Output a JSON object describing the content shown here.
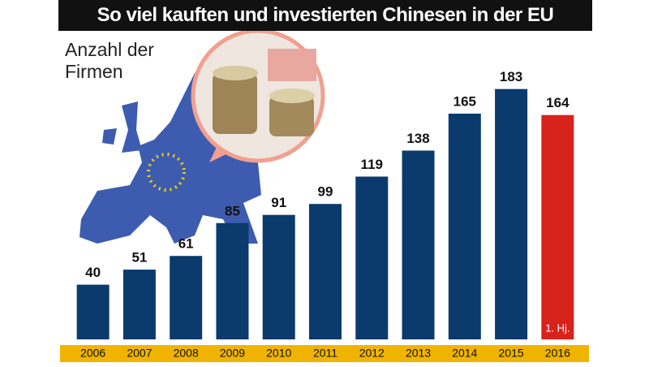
{
  "chart_data": {
    "type": "bar",
    "title": "So viel kauften und investierten Chinesen in der EU",
    "subtitle": "Anzahl der Firmen",
    "categories": [
      "2006",
      "2007",
      "2008",
      "2009",
      "2010",
      "2011",
      "2012",
      "2013",
      "2014",
      "2015",
      "2016"
    ],
    "values": [
      40,
      51,
      61,
      85,
      91,
      99,
      119,
      138,
      165,
      183,
      164
    ],
    "colors": [
      "#0b3a6c",
      "#0b3a6c",
      "#0b3a6c",
      "#0b3a6c",
      "#0b3a6c",
      "#0b3a6c",
      "#0b3a6c",
      "#0b3a6c",
      "#0b3a6c",
      "#0b3a6c",
      "#d8231c"
    ],
    "annotation": "1. Hj.",
    "ylim": [
      0,
      200
    ],
    "grid": false
  }
}
